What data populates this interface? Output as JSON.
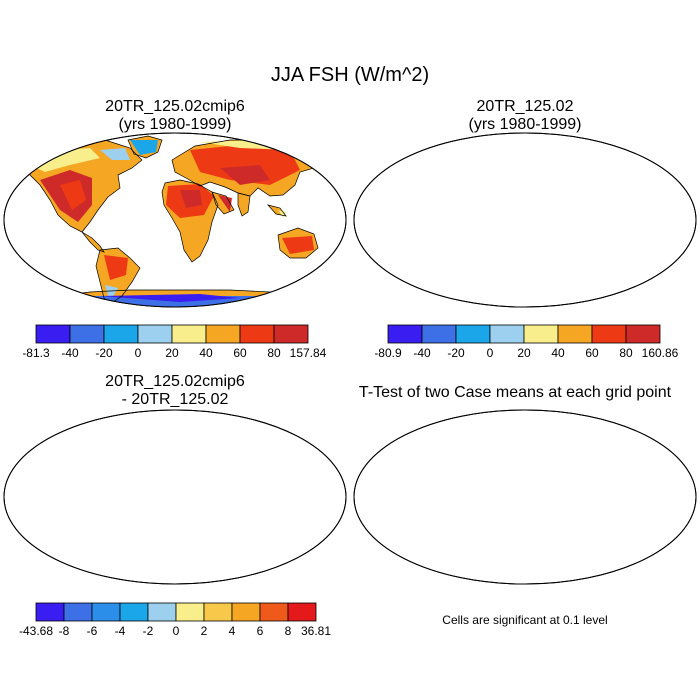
{
  "main_title": "JJA FSH (W/m^2)",
  "panels": [
    {
      "title_line1": "20TR_125.02cmip6",
      "title_line2": "(yrs 1980-1999)"
    },
    {
      "title_line1": "20TR_125.02",
      "title_line2": "(yrs 1980-1999)"
    },
    {
      "title_line1": "20TR_125.02cmip6",
      "title_line2": "- 20TR_125.02"
    },
    {
      "title_line1": "T-Test of two Case means at each grid point",
      "title_line2": ""
    }
  ],
  "note": "Cells are significant at 0.1 level",
  "chart_data": [
    {
      "type": "heatmap",
      "title": "20TR_125.02cmip6 (yrs 1980-1999)",
      "projection": "Robinson",
      "colorbar": {
        "labels": [
          "-81.3",
          "-40",
          "-20",
          "0",
          "20",
          "40",
          "60",
          "80",
          "157.84"
        ],
        "min": -81.3,
        "max": 157.84,
        "levels": [
          -40,
          -20,
          0,
          20,
          40,
          60,
          80
        ],
        "colors": [
          "#3a1df0",
          "#3d6fe6",
          "#1aa6e9",
          "#9dd0ee",
          "#f8ee8c",
          "#f5a623",
          "#ee3a14",
          "#cf2a2a"
        ]
      }
    },
    {
      "type": "heatmap",
      "title": "20TR_125.02 (yrs 1980-1999)",
      "projection": "Robinson",
      "colorbar": {
        "labels": [
          "-80.9",
          "-40",
          "-20",
          "0",
          "20",
          "40",
          "60",
          "80",
          "160.86"
        ],
        "min": -80.9,
        "max": 160.86,
        "levels": [
          -40,
          -20,
          0,
          20,
          40,
          60,
          80
        ],
        "colors": [
          "#3a1df0",
          "#3d6fe6",
          "#1aa6e9",
          "#9dd0ee",
          "#f8ee8c",
          "#f5a623",
          "#ee3a14",
          "#cf2a2a"
        ]
      }
    },
    {
      "type": "heatmap",
      "title": "20TR_125.02cmip6 - 20TR_125.02",
      "projection": "Robinson",
      "colorbar": {
        "labels": [
          "-43.68",
          "-8",
          "-6",
          "-4",
          "-2",
          "0",
          "2",
          "4",
          "6",
          "8",
          "36.81"
        ],
        "min": -43.68,
        "max": 36.81,
        "levels": [
          -8,
          -6,
          -4,
          -2,
          0,
          2,
          4,
          6,
          8
        ],
        "colors": [
          "#3a1df0",
          "#3d6fe6",
          "#2b8ee8",
          "#1aa6e9",
          "#9dd0ee",
          "#f8ee8c",
          "#f7c84a",
          "#f5a623",
          "#ef5a1a",
          "#e41a1a"
        ]
      }
    },
    {
      "type": "heatmap",
      "title": "T-Test of two Case means at each grid point",
      "projection": "Robinson",
      "significance_level": 0.1,
      "significant_color": "#e41a1a"
    }
  ]
}
